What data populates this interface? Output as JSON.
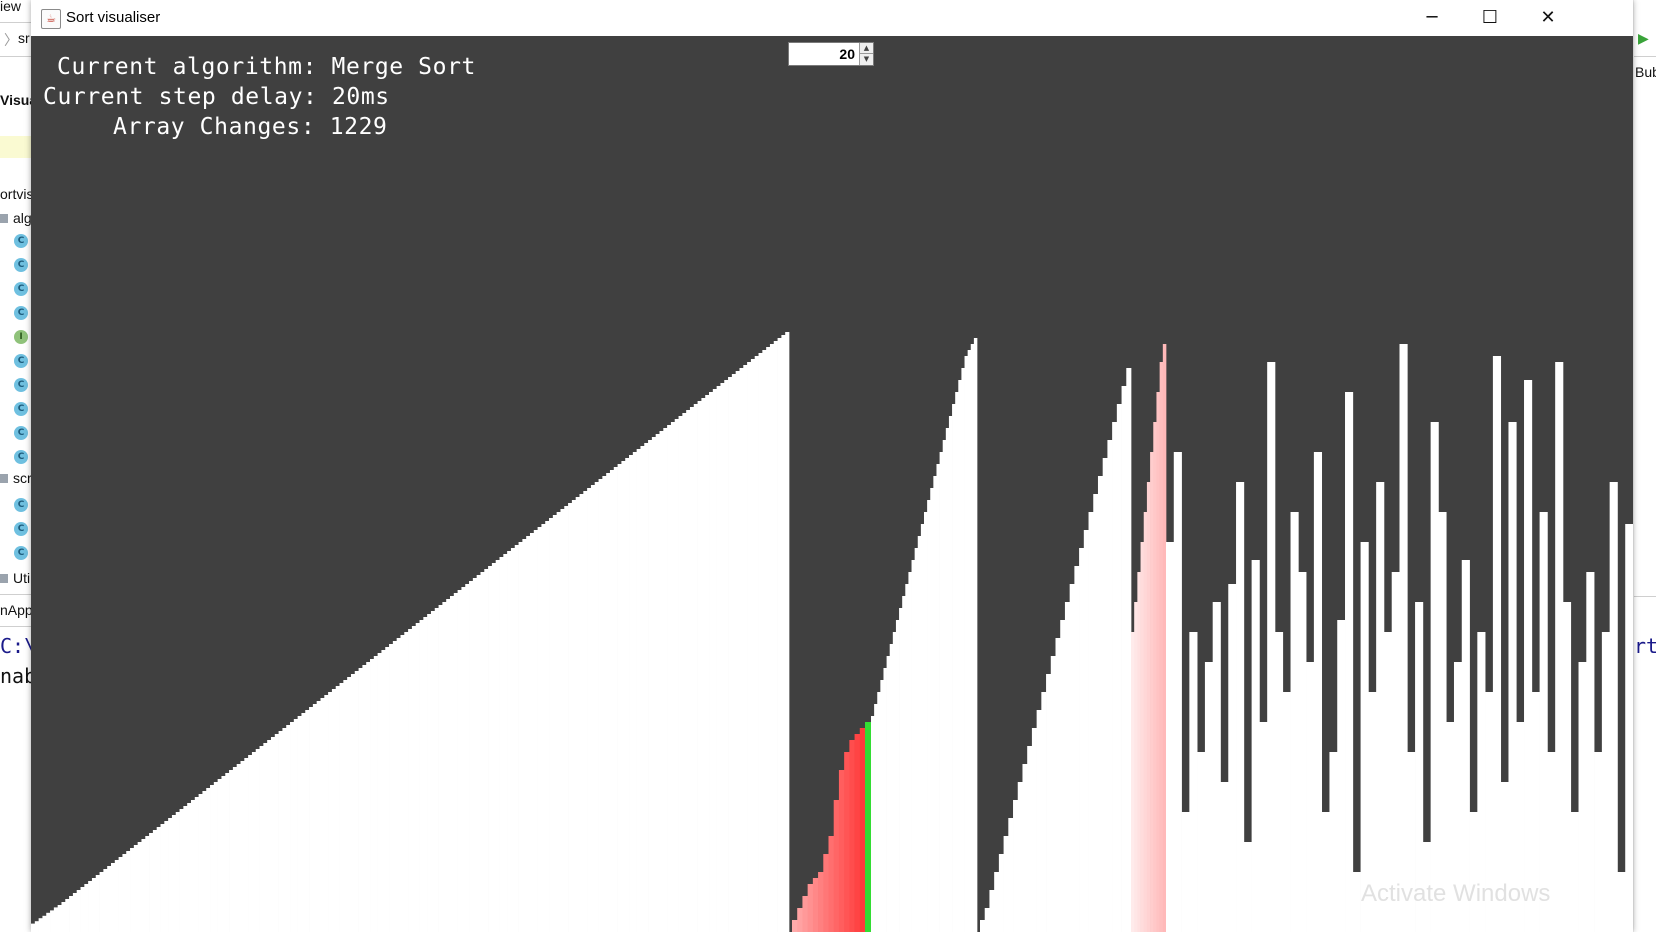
{
  "ide_background": {
    "left_fragments": [
      "iew",
      "sr",
      "Visua",
      "ortvis",
      "alg",
      "scr",
      "Uti",
      "nApp",
      "C:\\",
      "nab"
    ],
    "right_fragments": [
      "Bub",
      "rt."
    ],
    "class_icon_letter": "C",
    "interface_icon_letter": "I"
  },
  "window": {
    "title": "Sort visualiser",
    "minimize_glyph": "─",
    "maximize_glyph": "☐",
    "close_glyph": "✕"
  },
  "info": {
    "algorithm_line": "Current algorithm: Merge Sort",
    "delay_line": "Current step delay: 20ms",
    "changes_line": "Array Changes: 1229"
  },
  "delay_spinner": {
    "value": "20",
    "up_glyph": "▲",
    "down_glyph": "▼"
  },
  "watermark": "Activate Windows",
  "colors": {
    "canvas_bg": "#404040",
    "bar": "#ffffff",
    "compare_red": "#ff3b3b",
    "highlight_pink": "#ffb0b0",
    "current_green": "#33dd33"
  },
  "chart_data": {
    "type": "bar",
    "title": "",
    "sorted_run_1": [
      0.014,
      0.018,
      0.023,
      0.027,
      0.032,
      0.036,
      0.041,
      0.045,
      0.05,
      0.055,
      0.06,
      0.065,
      0.07,
      0.075,
      0.08,
      0.085,
      0.09,
      0.095,
      0.1,
      0.105,
      0.11,
      0.115,
      0.12,
      0.125,
      0.13,
      0.135,
      0.14,
      0.145,
      0.15,
      0.155,
      0.16,
      0.165,
      0.17,
      0.175,
      0.18,
      0.185,
      0.19,
      0.195,
      0.2,
      0.205,
      0.21,
      0.215,
      0.22,
      0.225,
      0.23,
      0.235,
      0.24,
      0.245,
      0.25,
      0.255,
      0.26,
      0.265,
      0.27,
      0.275,
      0.28,
      0.285,
      0.29,
      0.295,
      0.3,
      0.305,
      0.31,
      0.315,
      0.32,
      0.325,
      0.33,
      0.335,
      0.34,
      0.345,
      0.35,
      0.355,
      0.36,
      0.365,
      0.37,
      0.375,
      0.38,
      0.385,
      0.39,
      0.395,
      0.4,
      0.405,
      0.41,
      0.415,
      0.42,
      0.425,
      0.43,
      0.435,
      0.44,
      0.445,
      0.45,
      0.455,
      0.46,
      0.465,
      0.47,
      0.475,
      0.48,
      0.485,
      0.49,
      0.495,
      0.5,
      0.505,
      0.51,
      0.515,
      0.52,
      0.525,
      0.53,
      0.535,
      0.54,
      0.545,
      0.55,
      0.555,
      0.56,
      0.565,
      0.57,
      0.575,
      0.58,
      0.585,
      0.59,
      0.595,
      0.6,
      0.605,
      0.61,
      0.615,
      0.62,
      0.625,
      0.63,
      0.635,
      0.64,
      0.645,
      0.65,
      0.655,
      0.66,
      0.665,
      0.67,
      0.675,
      0.68,
      0.685,
      0.69,
      0.695,
      0.7,
      0.705,
      0.71,
      0.715,
      0.72,
      0.725,
      0.73,
      0.735,
      0.74,
      0.745,
      0.75,
      0.755,
      0.76,
      0.765,
      0.77,
      0.775,
      0.78,
      0.785,
      0.79,
      0.795,
      0.8,
      0.805,
      0.81,
      0.815,
      0.82,
      0.825,
      0.83,
      0.835,
      0.84,
      0.845,
      0.85,
      0.855,
      0.86,
      0.865,
      0.87,
      0.875,
      0.88,
      0.885,
      0.89,
      0.895,
      0.9,
      0.905,
      0.91,
      0.915,
      0.92,
      0.925,
      0.93,
      0.935,
      0.94,
      0.945,
      0.95,
      0.955,
      0.96,
      0.965,
      0.97,
      0.975,
      0.98,
      0.985,
      0.99,
      0.995,
      1.0
    ],
    "compare_red_run": [
      0.02,
      0.04,
      0.06,
      0.08,
      0.09,
      0.1,
      0.13,
      0.16,
      0.22,
      0.27,
      0.3,
      0.32,
      0.33,
      0.34
    ],
    "current_green": 0.35,
    "sorted_run_2": [
      0.36,
      0.38,
      0.4,
      0.42,
      0.44,
      0.46,
      0.48,
      0.5,
      0.52,
      0.54,
      0.56,
      0.58,
      0.6,
      0.62,
      0.64,
      0.66,
      0.68,
      0.7,
      0.72,
      0.74,
      0.76,
      0.78,
      0.8,
      0.82,
      0.84,
      0.86,
      0.88,
      0.9,
      0.92,
      0.94,
      0.96,
      0.97,
      0.98,
      0.99
    ],
    "sorted_run_3": [
      0.02,
      0.04,
      0.07,
      0.1,
      0.13,
      0.16,
      0.19,
      0.22,
      0.25,
      0.28,
      0.31,
      0.34,
      0.37,
      0.4,
      0.43,
      0.46,
      0.49,
      0.52,
      0.55,
      0.58,
      0.61,
      0.64,
      0.67,
      0.7,
      0.73,
      0.76,
      0.79,
      0.82,
      0.85,
      0.88,
      0.91,
      0.94
    ],
    "highlight_pink_run": [
      0.5,
      0.55,
      0.6,
      0.65,
      0.7,
      0.75,
      0.8,
      0.85,
      0.9,
      0.95,
      0.98
    ],
    "unsorted_run": [
      0.65,
      0.8,
      0.2,
      0.5,
      0.3,
      0.45,
      0.55,
      0.25,
      0.58,
      0.75,
      0.15,
      0.62,
      0.35,
      0.95,
      0.5,
      0.4,
      0.7,
      0.6,
      0.45,
      0.8,
      0.2,
      0.3,
      0.52,
      0.9,
      0.1,
      0.65,
      0.4,
      0.75,
      0.5,
      0.6,
      0.98,
      0.3,
      0.55,
      0.15,
      0.85,
      0.7,
      0.35,
      0.45,
      0.62,
      0.2,
      0.5,
      0.4,
      0.96,
      0.25,
      0.85,
      0.35,
      0.92,
      0.4,
      0.7,
      0.3,
      0.95,
      0.55,
      0.2,
      0.45,
      0.6,
      0.3,
      0.5,
      0.75,
      0.1,
      0.68
    ]
  }
}
